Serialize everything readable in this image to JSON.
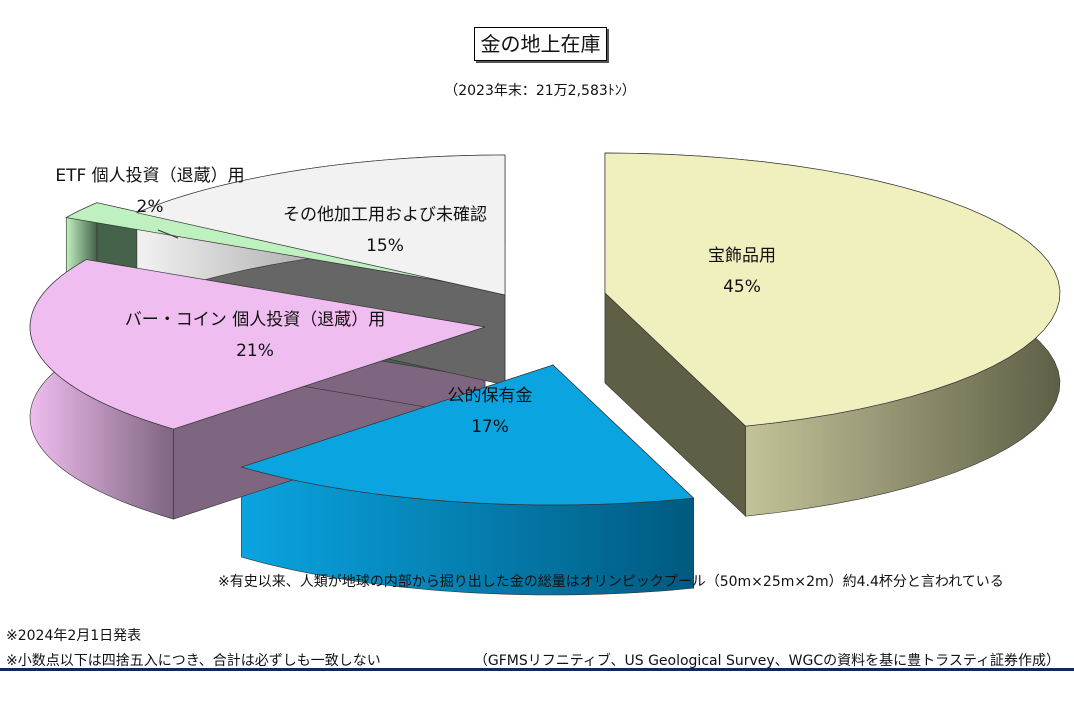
{
  "title": "金の地上在庫",
  "subtitle": "（2023年末：21万2,583ﾄﾝ）",
  "notes": {
    "olympic": "※有史以来、人類が地球の内部から掘り出した金の総量はオリンピックプール（50m×25m×2m）約4.4杯分と言われている",
    "date": "※2024年2月1日発表",
    "rounding": "※小数点以下は四捨五入につき、合計は必ずしも一致しない",
    "source": "（GFMSリフニティブ、US Geological Survey、WGCの資料を基に豊トラスティ証券作成）"
  },
  "chart_data": {
    "type": "pie",
    "style": "3d-exploded",
    "unit": "%",
    "slices": [
      {
        "label": "宝飾品用",
        "value": 45,
        "value_label": "45%",
        "color": "#f0f0bf"
      },
      {
        "label": "公的保有金",
        "value": 17,
        "value_label": "17%",
        "color": "#0aa4e0"
      },
      {
        "label": "バー・コイン 個人投資（退蔵）用",
        "value": 21,
        "value_label": "21%",
        "color": "#efbdef"
      },
      {
        "label": "ETF 個人投資（退蔵）用",
        "value": 2,
        "value_label": "2%",
        "color": "#bff0bf"
      },
      {
        "label": "その他加工用および未確認",
        "value": 15,
        "value_label": "15%",
        "color": "#f2f2f2"
      }
    ]
  }
}
